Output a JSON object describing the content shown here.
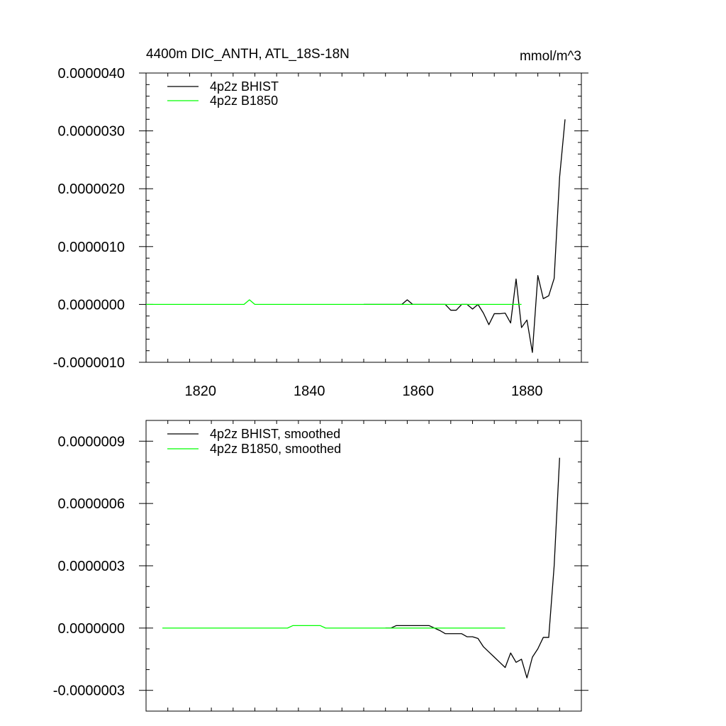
{
  "colors": {
    "background": "#ffffff",
    "axis": "#000000",
    "bhist": "#000000",
    "b1850": "#00ff00"
  },
  "chart_data": [
    {
      "type": "line",
      "title": "4400m DIC_ANTH, ATL_18S-18N",
      "units_label": "mmol/m^3",
      "xlabel": "",
      "ylabel": "",
      "xlim": [
        1810,
        1890
      ],
      "ylim": [
        -1e-06,
        4e-06
      ],
      "x_ticks": [
        1820,
        1840,
        1860,
        1880
      ],
      "x_tick_labels": [
        "1820",
        "1840",
        "1860",
        "1880"
      ],
      "y_ticks": [
        -1e-06,
        0.0,
        1e-06,
        2e-06,
        3e-06,
        4e-06
      ],
      "y_tick_labels": [
        "-0.0000010",
        "0.0000000",
        "0.0000010",
        "0.0000020",
        "0.0000030",
        "0.0000040"
      ],
      "legend_position": "top-left",
      "series": [
        {
          "name": "4p2z BHIST",
          "color": "#000000",
          "points": [
            [
              1850,
              0.0
            ],
            [
              1851,
              0.0
            ],
            [
              1852,
              0.0
            ],
            [
              1853,
              0.0
            ],
            [
              1854,
              0.0
            ],
            [
              1855,
              0.0
            ],
            [
              1856,
              0.0
            ],
            [
              1857,
              0.0
            ],
            [
              1858,
              8e-08
            ],
            [
              1859,
              0.0
            ],
            [
              1860,
              0.0
            ],
            [
              1861,
              0.0
            ],
            [
              1862,
              0.0
            ],
            [
              1863,
              0.0
            ],
            [
              1864,
              0.0
            ],
            [
              1865,
              0.0
            ],
            [
              1866,
              -1e-07
            ],
            [
              1867,
              -1e-07
            ],
            [
              1868,
              0.0
            ],
            [
              1869,
              0.0
            ],
            [
              1870,
              -8e-08
            ],
            [
              1871,
              0.0
            ],
            [
              1872,
              -1.5e-07
            ],
            [
              1873,
              -3.5e-07
            ],
            [
              1874,
              -1.6e-07
            ],
            [
              1875,
              -1.6e-07
            ],
            [
              1876,
              -1.5e-07
            ],
            [
              1877,
              -3.2e-07
            ],
            [
              1878,
              4.4e-07
            ],
            [
              1879,
              -4e-07
            ],
            [
              1880,
              -2.7e-07
            ],
            [
              1881,
              -8.3e-07
            ],
            [
              1882,
              5e-07
            ],
            [
              1883,
              1e-07
            ],
            [
              1884,
              1.5e-07
            ],
            [
              1885,
              4.5e-07
            ],
            [
              1886,
              2.2e-06
            ],
            [
              1887,
              3.2e-06
            ]
          ]
        },
        {
          "name": "4p2z B1850",
          "color": "#00ff00",
          "points": [
            [
              1810,
              0.0
            ],
            [
              1828,
              0.0
            ],
            [
              1829,
              8e-08
            ],
            [
              1830,
              0.0
            ],
            [
              1869,
              0.0
            ],
            [
              1879,
              0.0
            ]
          ]
        }
      ]
    },
    {
      "type": "line",
      "title": "",
      "xlabel": "",
      "ylabel": "",
      "xlim": [
        1810,
        1890
      ],
      "ylim": [
        -4e-07,
        1e-06
      ],
      "x_ticks": [
        1820,
        1840,
        1860,
        1880
      ],
      "x_tick_labels": [],
      "y_ticks": [
        -3e-07,
        0.0,
        3e-07,
        6e-07,
        9e-07
      ],
      "y_tick_labels": [
        "-0.0000003",
        "0.0000000",
        "0.0000003",
        "0.0000006",
        "0.0000009"
      ],
      "legend_position": "top-left",
      "series": [
        {
          "name": "4p2z BHIST, smoothed",
          "color": "#000000",
          "points": [
            [
              1854,
              0.0
            ],
            [
              1855,
              0.0
            ],
            [
              1856,
              1.2e-08
            ],
            [
              1857,
              1.2e-08
            ],
            [
              1858,
              1.2e-08
            ],
            [
              1859,
              1.2e-08
            ],
            [
              1860,
              1.2e-08
            ],
            [
              1861,
              1.2e-08
            ],
            [
              1862,
              1.2e-08
            ],
            [
              1863,
              0.0
            ],
            [
              1864,
              -1.2e-08
            ],
            [
              1865,
              -2.7e-08
            ],
            [
              1866,
              -2.7e-08
            ],
            [
              1867,
              -2.7e-08
            ],
            [
              1868,
              -2.7e-08
            ],
            [
              1869,
              -4.2e-08
            ],
            [
              1870,
              -4.2e-08
            ],
            [
              1871,
              -5e-08
            ],
            [
              1872,
              -9e-08
            ],
            [
              1873,
              -1.15e-07
            ],
            [
              1874,
              -1.4e-07
            ],
            [
              1875,
              -1.65e-07
            ],
            [
              1876,
              -1.9e-07
            ],
            [
              1877,
              -1.2e-07
            ],
            [
              1878,
              -1.65e-07
            ],
            [
              1879,
              -1.5e-07
            ],
            [
              1880,
              -2.4e-07
            ],
            [
              1881,
              -1.4e-07
            ],
            [
              1882,
              -1e-07
            ],
            [
              1883,
              -4.5e-08
            ],
            [
              1884,
              -4.5e-08
            ],
            [
              1885,
              3e-07
            ],
            [
              1886,
              8.2e-07
            ]
          ]
        },
        {
          "name": "4p2z B1850, smoothed",
          "color": "#00ff00",
          "points": [
            [
              1813,
              0.0
            ],
            [
              1836,
              0.0
            ],
            [
              1837,
              1.2e-08
            ],
            [
              1842,
              1.2e-08
            ],
            [
              1843,
              0.0
            ],
            [
              1861,
              0.0
            ],
            [
              1876,
              0.0
            ]
          ]
        }
      ]
    }
  ]
}
